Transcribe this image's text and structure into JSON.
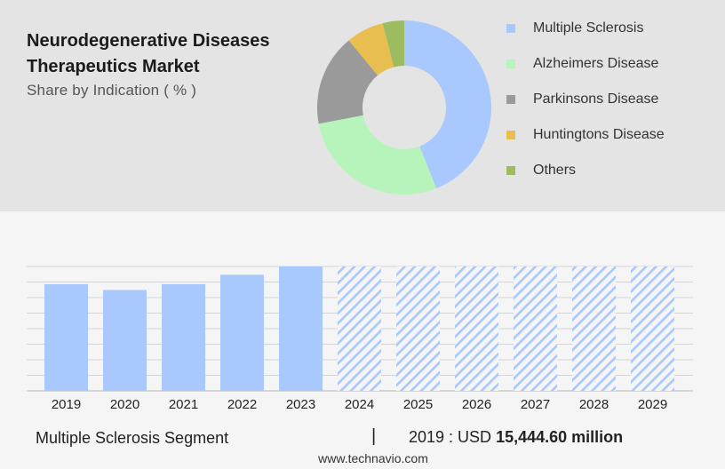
{
  "header": {
    "title": "Neurodegenerative Diseases Therapeutics Market",
    "subtitle": "Share by Indication ( % )"
  },
  "chart_data": [
    {
      "type": "pie",
      "subtype": "donut",
      "title": "Share by Indication ( % )",
      "slices": [
        {
          "label": "Multiple Sclerosis",
          "value": 44,
          "color": "#a9c8fe"
        },
        {
          "label": "Alzheimers Disease",
          "value": 28,
          "color": "#b7f4bb"
        },
        {
          "label": "Parkinsons Disease",
          "value": 17,
          "color": "#9a9a9a"
        },
        {
          "label": "Huntingtons Disease",
          "value": 7,
          "color": "#e7be4f"
        },
        {
          "label": "Others",
          "value": 4,
          "color": "#9dbb5f"
        }
      ],
      "legend_position": "right"
    },
    {
      "type": "bar",
      "categories": [
        "2019",
        "2020",
        "2021",
        "2022",
        "2023",
        "2024",
        "2025",
        "2026",
        "2027",
        "2028",
        "2029"
      ],
      "values": [
        15444.6,
        14600,
        15450,
        16800,
        18000,
        18000,
        18000,
        18000,
        18000,
        18000,
        18000
      ],
      "forecast_from": "2024",
      "ylim": [
        0,
        18000
      ],
      "grid": true,
      "bar_color": "#a9c8fe"
    }
  ],
  "footer": {
    "segment_label": "Multiple Sclerosis Segment",
    "divider": "|",
    "value_prefix": "2019 : USD",
    "value_amount": "15,444.60 million"
  },
  "source": "www.technavio.com"
}
